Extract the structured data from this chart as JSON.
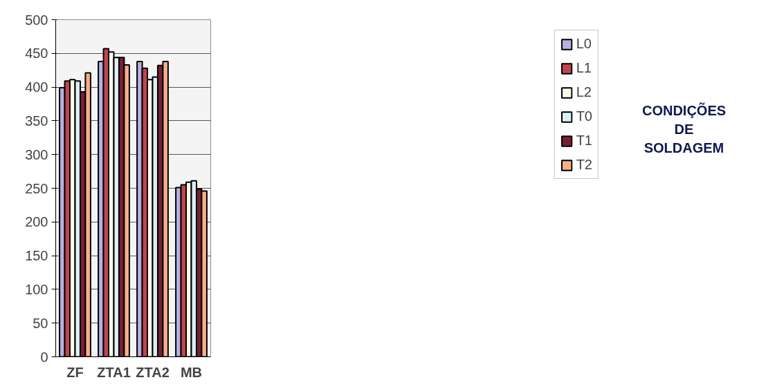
{
  "chart_data": {
    "type": "bar",
    "categories": [
      "ZF",
      "ZTA1",
      "ZTA2",
      "MB"
    ],
    "series": [
      {
        "name": "L0",
        "color": "#b8b0e0",
        "values": [
          399,
          438,
          438,
          251
        ]
      },
      {
        "name": "L1",
        "color": "#c0454f",
        "values": [
          409,
          457,
          428,
          255
        ]
      },
      {
        "name": "L2",
        "color": "#fffbe8",
        "values": [
          411,
          452,
          411,
          259
        ]
      },
      {
        "name": "T0",
        "color": "#ddf0f8",
        "values": [
          409,
          444,
          415,
          261
        ]
      },
      {
        "name": "T1",
        "color": "#7a1f34",
        "values": [
          393,
          444,
          432,
          249
        ]
      },
      {
        "name": "T2",
        "color": "#f8b08a",
        "values": [
          421,
          433,
          438,
          246
        ]
      }
    ],
    "legend_title": "CONDIÇÕES DE SOLDAGEM",
    "ylim": [
      0,
      500
    ],
    "yticks": [
      0,
      50,
      100,
      150,
      200,
      250,
      300,
      350,
      400,
      450,
      500
    ],
    "grid": "y",
    "legend": "right"
  }
}
